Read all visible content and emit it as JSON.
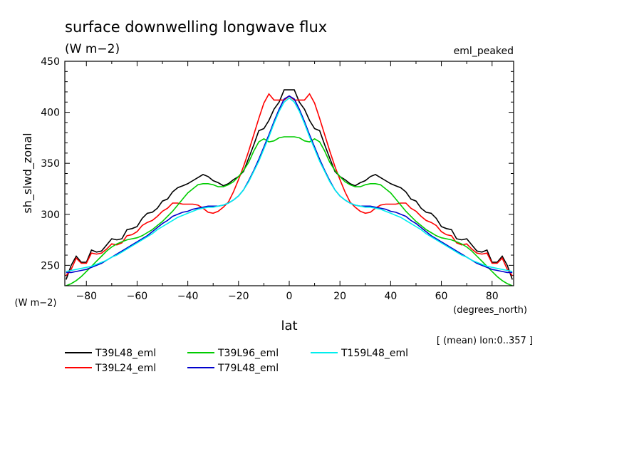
{
  "chart_data": {
    "type": "line",
    "title": "surface downwelling longwave flux",
    "subtitle": "(W m−2)",
    "tag": "eml_peaked",
    "ylabel": "sh_slwd_zonal",
    "y_unit": "(W m−2)",
    "xlabel": "lat",
    "x_unit": "(degrees_north)",
    "footnote": "[ (mean) lon:0..357 ]",
    "xlim": [
      -88.5,
      88.5
    ],
    "ylim": [
      230,
      450
    ],
    "xticks": [
      -80,
      -60,
      -40,
      -20,
      0,
      20,
      40,
      60,
      80
    ],
    "yticks": [
      250,
      300,
      350,
      400,
      450
    ],
    "grid": false,
    "legend_position": "bottom",
    "series": [
      {
        "name": "T39L48_eml",
        "color": "#000000",
        "x": [
          -88,
          -86,
          -84,
          -82,
          -80,
          -78,
          -76,
          -74,
          -72,
          -70,
          -68,
          -66,
          -64,
          -62,
          -60,
          -58,
          -56,
          -54,
          -52,
          -50,
          -48,
          -46,
          -44,
          -42,
          -40,
          -38,
          -36,
          -34,
          -32,
          -30,
          -28,
          -26,
          -24,
          -22,
          -20,
          -18,
          -16,
          -14,
          -12,
          -10,
          -8,
          -6,
          -4,
          -2,
          0,
          2,
          4,
          6,
          8,
          10,
          12,
          14,
          16,
          18,
          20,
          22,
          24,
          26,
          28,
          30,
          32,
          34,
          36,
          38,
          40,
          42,
          44,
          46,
          48,
          50,
          52,
          54,
          56,
          58,
          60,
          62,
          64,
          66,
          68,
          70,
          72,
          74,
          76,
          78,
          80,
          82,
          84,
          86,
          88
        ],
        "y": [
          236,
          250,
          259,
          253,
          253,
          265,
          263,
          264,
          270,
          276,
          275,
          276,
          285,
          286,
          288,
          296,
          301,
          302,
          306,
          313,
          315,
          322,
          326,
          328,
          330,
          333,
          336,
          339,
          337,
          333,
          331,
          328,
          330,
          334,
          337,
          342,
          355,
          368,
          382,
          384,
          392,
          403,
          410,
          422,
          422,
          422,
          410,
          403,
          392,
          384,
          382,
          368,
          355,
          342,
          337,
          334,
          330,
          328,
          331,
          333,
          337,
          339,
          336,
          333,
          330,
          328,
          326,
          322,
          315,
          313,
          306,
          302,
          301,
          296,
          288,
          286,
          285,
          276,
          275,
          276,
          270,
          264,
          263,
          265,
          253,
          253,
          259,
          250,
          236
        ]
      },
      {
        "name": "T39L24_eml",
        "color": "#ff0000",
        "x": [
          -88,
          -86,
          -84,
          -82,
          -80,
          -78,
          -76,
          -74,
          -72,
          -70,
          -68,
          -66,
          -64,
          -62,
          -60,
          -58,
          -56,
          -54,
          -52,
          -50,
          -48,
          -46,
          -44,
          -42,
          -40,
          -38,
          -36,
          -34,
          -32,
          -30,
          -28,
          -26,
          -24,
          -22,
          -20,
          -18,
          -16,
          -14,
          -12,
          -10,
          -8,
          -6,
          -4,
          -2,
          0,
          2,
          4,
          6,
          8,
          10,
          12,
          14,
          16,
          18,
          20,
          22,
          24,
          26,
          28,
          30,
          32,
          34,
          36,
          38,
          40,
          42,
          44,
          46,
          48,
          50,
          52,
          54,
          56,
          58,
          60,
          62,
          64,
          66,
          68,
          70,
          72,
          74,
          76,
          78,
          80,
          82,
          84,
          86,
          88
        ],
        "y": [
          240,
          246,
          257,
          252,
          252,
          262,
          261,
          262,
          266,
          271,
          270,
          272,
          279,
          280,
          283,
          289,
          292,
          294,
          298,
          303,
          306,
          311,
          311,
          310,
          310,
          310,
          309,
          306,
          302,
          301,
          303,
          307,
          312,
          322,
          334,
          347,
          362,
          378,
          394,
          409,
          418,
          412,
          412,
          412,
          416,
          412,
          412,
          412,
          418,
          409,
          394,
          378,
          362,
          347,
          334,
          322,
          312,
          307,
          303,
          301,
          302,
          306,
          309,
          310,
          310,
          310,
          311,
          311,
          306,
          303,
          298,
          294,
          292,
          289,
          283,
          280,
          279,
          272,
          270,
          271,
          266,
          262,
          261,
          262,
          252,
          252,
          257,
          246,
          240
        ]
      },
      {
        "name": "T39L96_eml",
        "color": "#00cc00",
        "x": [
          -88,
          -86,
          -84,
          -82,
          -80,
          -78,
          -76,
          -74,
          -72,
          -70,
          -68,
          -66,
          -64,
          -62,
          -60,
          -58,
          -56,
          -54,
          -52,
          -50,
          -48,
          -46,
          -44,
          -42,
          -40,
          -38,
          -36,
          -34,
          -32,
          -30,
          -28,
          -26,
          -24,
          -22,
          -20,
          -18,
          -16,
          -14,
          -12,
          -10,
          -8,
          -6,
          -4,
          -2,
          0,
          2,
          4,
          6,
          8,
          10,
          12,
          14,
          16,
          18,
          20,
          22,
          24,
          26,
          28,
          30,
          32,
          34,
          36,
          38,
          40,
          42,
          44,
          46,
          48,
          50,
          52,
          54,
          56,
          58,
          60,
          62,
          64,
          66,
          68,
          70,
          72,
          74,
          76,
          78,
          80,
          82,
          84,
          86,
          88
        ],
        "y": [
          230,
          232,
          235,
          239,
          244,
          249,
          254,
          259,
          264,
          268,
          271,
          273,
          275,
          276,
          277,
          279,
          282,
          285,
          289,
          293,
          298,
          303,
          309,
          315,
          321,
          325,
          329,
          330,
          330,
          329,
          327,
          327,
          329,
          332,
          337,
          343,
          351,
          362,
          371,
          374,
          371,
          372,
          375,
          376,
          376,
          376,
          375,
          372,
          371,
          374,
          371,
          362,
          351,
          343,
          337,
          332,
          329,
          327,
          327,
          329,
          330,
          330,
          329,
          325,
          321,
          315,
          309,
          303,
          298,
          293,
          289,
          285,
          282,
          279,
          277,
          276,
          275,
          273,
          271,
          268,
          264,
          259,
          254,
          249,
          244,
          239,
          235,
          232,
          230
        ]
      },
      {
        "name": "T79L48_eml",
        "color": "#0000cc",
        "x": [
          -88,
          -86,
          -84,
          -82,
          -80,
          -78,
          -76,
          -74,
          -72,
          -70,
          -68,
          -66,
          -64,
          -62,
          -60,
          -58,
          -56,
          -54,
          -52,
          -50,
          -48,
          -46,
          -44,
          -42,
          -40,
          -38,
          -36,
          -34,
          -32,
          -30,
          -28,
          -26,
          -24,
          -22,
          -20,
          -18,
          -16,
          -14,
          -12,
          -10,
          -8,
          -6,
          -4,
          -2,
          0,
          2,
          4,
          6,
          8,
          10,
          12,
          14,
          16,
          18,
          20,
          22,
          24,
          26,
          28,
          30,
          32,
          34,
          36,
          38,
          40,
          42,
          44,
          46,
          48,
          50,
          52,
          54,
          56,
          58,
          60,
          62,
          64,
          66,
          68,
          70,
          72,
          74,
          76,
          78,
          80,
          82,
          84,
          86,
          88
        ],
        "y": [
          243,
          243,
          244,
          245,
          246,
          248,
          250,
          252,
          255,
          258,
          261,
          264,
          267,
          270,
          273,
          276,
          279,
          283,
          287,
          291,
          294,
          298,
          300,
          302,
          303,
          305,
          306,
          307,
          308,
          308,
          308,
          309,
          311,
          314,
          318,
          324,
          333,
          343,
          354,
          366,
          378,
          391,
          403,
          413,
          416,
          413,
          403,
          391,
          378,
          366,
          354,
          343,
          333,
          324,
          318,
          314,
          311,
          309,
          308,
          308,
          308,
          307,
          306,
          305,
          303,
          302,
          300,
          298,
          294,
          291,
          287,
          283,
          279,
          276,
          273,
          270,
          267,
          264,
          261,
          258,
          255,
          252,
          250,
          248,
          246,
          245,
          244,
          243,
          243
        ]
      },
      {
        "name": "T159L48_eml",
        "color": "#00eeee",
        "x": [
          -88,
          -86,
          -84,
          -82,
          -80,
          -78,
          -76,
          -74,
          -72,
          -70,
          -68,
          -66,
          -64,
          -62,
          -60,
          -58,
          -56,
          -54,
          -52,
          -50,
          -48,
          -46,
          -44,
          -42,
          -40,
          -38,
          -36,
          -34,
          -32,
          -30,
          -28,
          -26,
          -24,
          -22,
          -20,
          -18,
          -16,
          -14,
          -12,
          -10,
          -8,
          -6,
          -4,
          -2,
          0,
          2,
          4,
          6,
          8,
          10,
          12,
          14,
          16,
          18,
          20,
          22,
          24,
          26,
          28,
          30,
          32,
          34,
          36,
          38,
          40,
          42,
          44,
          46,
          48,
          50,
          52,
          54,
          56,
          58,
          60,
          62,
          64,
          66,
          68,
          70,
          72,
          74,
          76,
          78,
          80,
          82,
          84,
          86,
          88
        ],
        "y": [
          244,
          245,
          246,
          247,
          248,
          249,
          251,
          253,
          255,
          258,
          260,
          263,
          266,
          269,
          272,
          275,
          278,
          281,
          285,
          288,
          291,
          294,
          297,
          299,
          301,
          303,
          305,
          306,
          307,
          307,
          308,
          309,
          311,
          314,
          318,
          324,
          332,
          342,
          352,
          364,
          376,
          389,
          401,
          410,
          414,
          410,
          401,
          389,
          376,
          364,
          352,
          342,
          332,
          324,
          318,
          314,
          311,
          309,
          308,
          307,
          307,
          306,
          305,
          303,
          301,
          299,
          297,
          294,
          291,
          288,
          285,
          281,
          278,
          275,
          272,
          269,
          266,
          263,
          260,
          258,
          255,
          253,
          251,
          249,
          248,
          247,
          246,
          245,
          244
        ]
      }
    ]
  }
}
